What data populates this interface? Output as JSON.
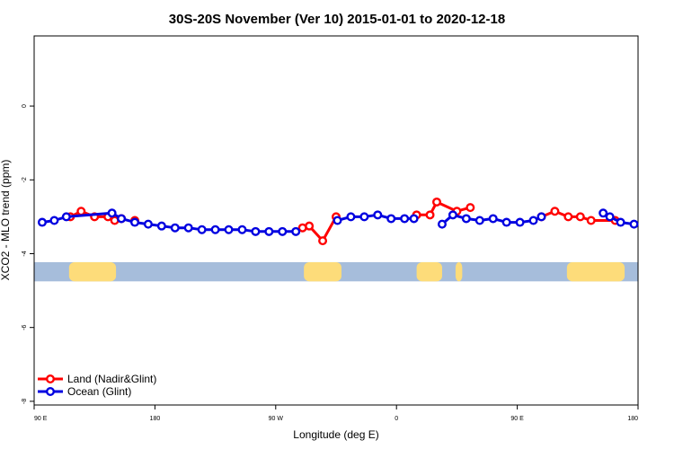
{
  "chart_data": {
    "type": "line",
    "title": "30S-20S November (Ver 10)   2015-01-01 to 2020-12-18",
    "xlabel": "Longitude (deg E)",
    "ylabel": "XCO2 - MLO trend (ppm)",
    "xlim": [
      90,
      540
    ],
    "ylim": [
      -8.1,
      1.9
    ],
    "x_ticks": [
      90,
      180,
      270,
      360,
      450,
      540
    ],
    "x_tick_labels": [
      "90 E",
      "180",
      "90 W",
      "0",
      "90 E",
      "180"
    ],
    "y_ticks": [
      0,
      -2,
      -4,
      -6,
      -8
    ],
    "y_tick_labels": [
      "0",
      "-2",
      "-4",
      "-6",
      "-8"
    ],
    "legend_position": "bottom-left",
    "colors": {
      "land": "#ff0000",
      "ocean": "#0000e0",
      "map_ocean": "#a6bddb",
      "map_land": "#fddc7a"
    },
    "series": [
      {
        "name": "Land (Nadir&Glint)",
        "color": "#ff0000",
        "segments": [
          [
            [
              117,
              -3.0
            ],
            [
              125,
              -2.85
            ],
            [
              135,
              -3.0
            ],
            [
              145,
              -3.0
            ],
            [
              150,
              -3.1
            ],
            [
              155,
              -3.05
            ]
          ],
          [
            [
              165,
              -3.1
            ]
          ],
          [
            [
              290,
              -3.3
            ],
            [
              295,
              -3.25
            ],
            [
              305,
              -3.65
            ],
            [
              315,
              -3.0
            ]
          ],
          [
            [
              375,
              -2.95
            ],
            [
              385,
              -2.95
            ],
            [
              390,
              -2.6
            ],
            [
              405,
              -2.85
            ],
            [
              415,
              -2.75
            ]
          ],
          [
            [
              468,
              -3.0
            ],
            [
              478,
              -2.85
            ],
            [
              488,
              -3.0
            ],
            [
              497,
              -3.0
            ],
            [
              505,
              -3.1
            ],
            [
              523,
              -3.1
            ]
          ]
        ]
      },
      {
        "name": "Ocean (Glint)",
        "color": "#0000e0",
        "segments": [
          [
            [
              96,
              -3.15
            ],
            [
              105,
              -3.1
            ],
            [
              114,
              -3.0
            ],
            [
              148,
              -2.9
            ],
            [
              155,
              -3.05
            ],
            [
              165,
              -3.15
            ],
            [
              175,
              -3.2
            ],
            [
              185,
              -3.25
            ],
            [
              195,
              -3.3
            ],
            [
              205,
              -3.3
            ],
            [
              215,
              -3.35
            ],
            [
              225,
              -3.35
            ],
            [
              235,
              -3.35
            ],
            [
              245,
              -3.35
            ],
            [
              255,
              -3.4
            ],
            [
              265,
              -3.4
            ],
            [
              275,
              -3.4
            ],
            [
              285,
              -3.4
            ]
          ],
          [
            [
              316,
              -3.1
            ],
            [
              326,
              -3.0
            ],
            [
              336,
              -3.0
            ],
            [
              346,
              -2.95
            ],
            [
              356,
              -3.05
            ],
            [
              366,
              -3.05
            ],
            [
              373,
              -3.05
            ]
          ],
          [
            [
              394,
              -3.2
            ],
            [
              402,
              -2.95
            ],
            [
              412,
              -3.05
            ],
            [
              422,
              -3.1
            ],
            [
              432,
              -3.05
            ],
            [
              442,
              -3.15
            ],
            [
              452,
              -3.15
            ],
            [
              462,
              -3.1
            ],
            [
              468,
              -3.0
            ]
          ],
          [
            [
              514,
              -2.9
            ],
            [
              519,
              -3.0
            ],
            [
              527,
              -3.15
            ],
            [
              537,
              -3.2
            ]
          ]
        ]
      }
    ],
    "map_strip": {
      "y_range": [
        -4.23,
        -4.75
      ],
      "land_x_ranges": [
        [
          116,
          151
        ],
        [
          291,
          319
        ],
        [
          375,
          394
        ],
        [
          404,
          409
        ],
        [
          487,
          530
        ]
      ]
    }
  }
}
